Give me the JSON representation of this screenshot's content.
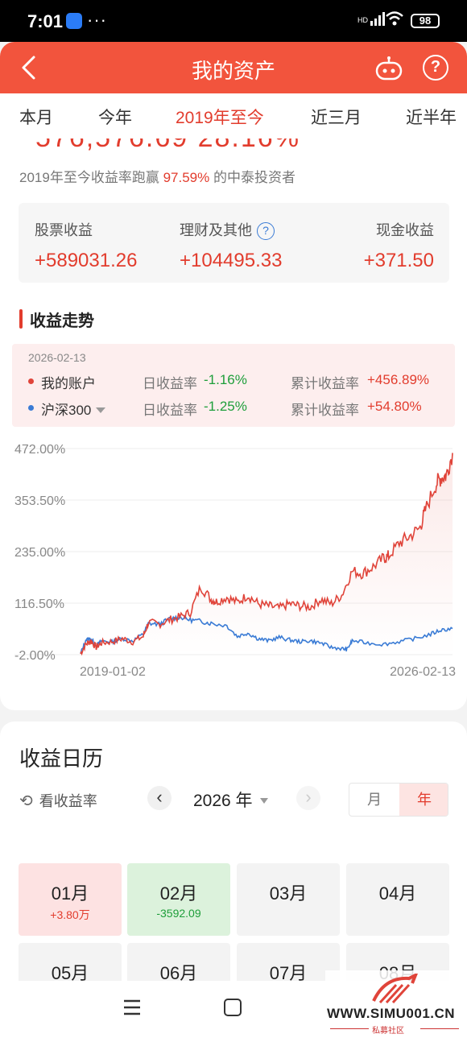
{
  "status_bar": {
    "time": "7:01",
    "dots": "···",
    "signal": "HD",
    "battery": "98"
  },
  "header": {
    "title": "我的资产",
    "icons": [
      "back-arrow-icon",
      "robot-assistant-icon",
      "help-icon"
    ],
    "help_label": "?"
  },
  "tabs": [
    {
      "label": "本月",
      "active": false
    },
    {
      "label": "今年",
      "active": false
    },
    {
      "label": "2019年至今",
      "active": true
    },
    {
      "label": "近三月",
      "active": false
    },
    {
      "label": "近半年",
      "active": false
    }
  ],
  "summary": {
    "cut_off_value": "576,576.69 28.16%",
    "beat_prefix": "2019年至今收益率跑赢",
    "beat_percent": "97.59%",
    "beat_suffix": "的中泰投资者",
    "earnings": [
      {
        "label": "股票收益",
        "value": "+589031.26"
      },
      {
        "label": "理财及其他",
        "value": "+104495.33"
      },
      {
        "label": "现金收益",
        "value": "+371.50"
      }
    ]
  },
  "trend": {
    "title": "收益走势",
    "date": "2026-02-13",
    "series_rows": [
      {
        "name": "我的账户",
        "daily_label": "日收益率",
        "daily_value": "-1.16%",
        "cum_label": "累计收益率",
        "cum_value": "+456.89%",
        "color": "#e0443a"
      },
      {
        "name": "沪深300",
        "daily_label": "日收益率",
        "daily_value": "-1.25%",
        "cum_label": "累计收益率",
        "cum_value": "+54.80%",
        "color": "#3a7bd5"
      }
    ]
  },
  "chart_data": {
    "type": "line",
    "ytick_labels": [
      "472.00%",
      "353.50%",
      "235.00%",
      "116.50%",
      "-2.00%"
    ],
    "ytick_values": [
      472,
      353.5,
      235,
      116.5,
      -2
    ],
    "ylim": [
      -2,
      472
    ],
    "x_start_label": "2019-01-02",
    "x_end_label": "2026-02-13",
    "grid": true,
    "series": [
      {
        "name": "我的账户",
        "color": "#e0443a",
        "x": [
          2019.0,
          2019.1,
          2019.2,
          2019.3,
          2019.4,
          2019.6,
          2019.8,
          2020.0,
          2020.2,
          2020.3,
          2020.5,
          2020.7,
          2020.9,
          2021.1,
          2021.3,
          2021.5,
          2021.6,
          2021.8,
          2022.0,
          2022.2,
          2022.4,
          2022.6,
          2022.8,
          2023.0,
          2023.2,
          2023.4,
          2023.6,
          2023.8,
          2024.0,
          2024.2,
          2024.4,
          2024.6,
          2024.8,
          2024.9,
          2025.1,
          2025.3,
          2025.5,
          2025.6,
          2025.8,
          2025.9,
          2026.0,
          2026.12
        ],
        "values": [
          0,
          22,
          30,
          15,
          25,
          28,
          35,
          28,
          40,
          72,
          68,
          78,
          85,
          95,
          155,
          125,
          120,
          130,
          118,
          135,
          115,
          110,
          105,
          115,
          110,
          108,
          125,
          115,
          135,
          190,
          185,
          200,
          220,
          225,
          255,
          270,
          290,
          330,
          390,
          405,
          410,
          462
        ]
      },
      {
        "name": "沪深300",
        "color": "#3a7bd5",
        "x": [
          2019.0,
          2019.1,
          2019.2,
          2019.3,
          2019.4,
          2019.6,
          2019.8,
          2020.0,
          2020.2,
          2020.3,
          2020.5,
          2020.7,
          2020.9,
          2021.1,
          2021.3,
          2021.5,
          2021.8,
          2022.0,
          2022.2,
          2022.4,
          2022.6,
          2022.8,
          2023.0,
          2023.2,
          2023.4,
          2023.6,
          2023.8,
          2024.0,
          2024.1,
          2024.2,
          2024.5,
          2024.8,
          2025.1,
          2025.4,
          2025.7,
          2025.9,
          2026.12
        ],
        "values": [
          0,
          32,
          35,
          18,
          30,
          28,
          35,
          30,
          45,
          70,
          68,
          80,
          85,
          78,
          75,
          70,
          65,
          40,
          48,
          35,
          30,
          38,
          32,
          28,
          30,
          25,
          15,
          12,
          10,
          30,
          25,
          22,
          28,
          35,
          45,
          55,
          58
        ]
      }
    ]
  },
  "calendar": {
    "title": "收益日历",
    "toggle_label": "看收益率",
    "year_label": "2026 年",
    "segment": [
      "月",
      "年"
    ],
    "months": [
      {
        "label": "01月",
        "value": "+3.80万",
        "state": "up"
      },
      {
        "label": "02月",
        "value": "-3592.09",
        "state": "down"
      },
      {
        "label": "03月",
        "value": "",
        "state": "none"
      },
      {
        "label": "04月",
        "value": "",
        "state": "none"
      },
      {
        "label": "05月",
        "value": "",
        "state": "none"
      },
      {
        "label": "06月",
        "value": "",
        "state": "none"
      },
      {
        "label": "07月",
        "value": "",
        "state": "none"
      },
      {
        "label": "08月",
        "value": "",
        "state": "none"
      }
    ]
  },
  "watermark": {
    "url": "WWW.SIMU001.CN",
    "sub": "私募社区"
  }
}
